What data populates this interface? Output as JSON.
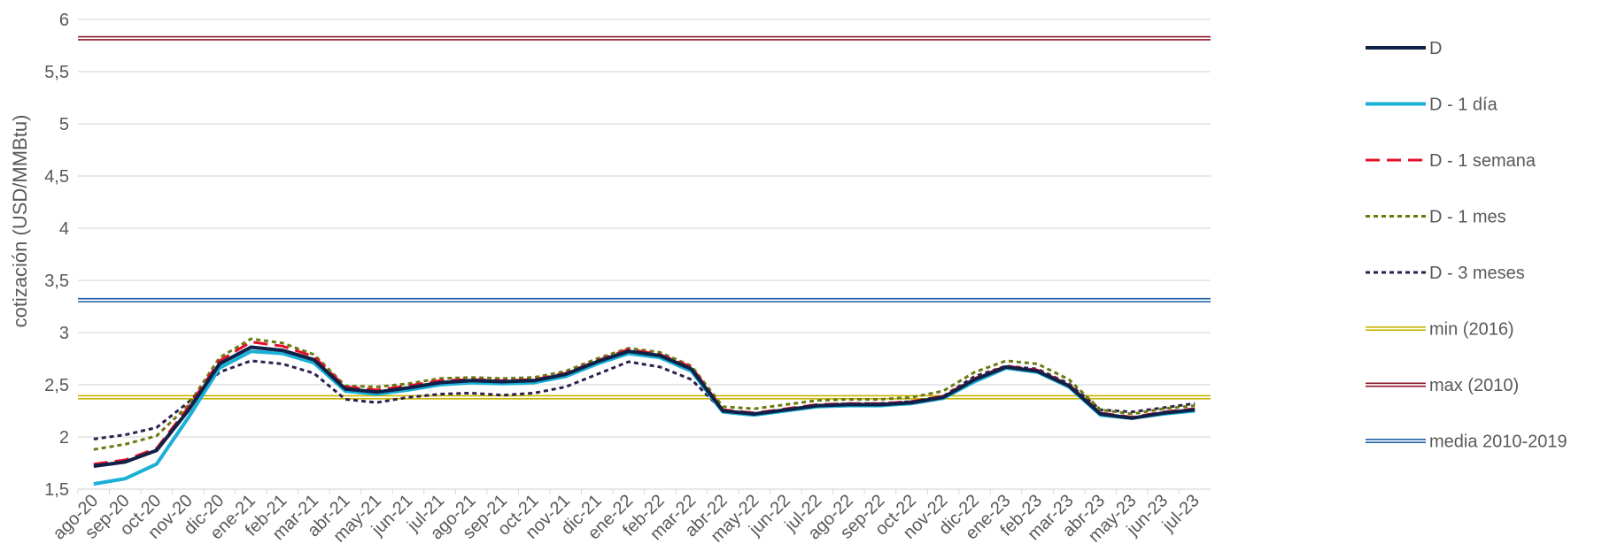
{
  "chart_data": {
    "type": "line",
    "ylabel": "cotización (USD/MMBtu)",
    "xlabel": "",
    "title": "",
    "ylim": [
      1.5,
      6
    ],
    "yticks": [
      "1,5",
      "2",
      "2,5",
      "3",
      "3,5",
      "4",
      "4,5",
      "5",
      "5,5",
      "6"
    ],
    "ytick_values": [
      1.5,
      2,
      2.5,
      3,
      3.5,
      4,
      4.5,
      5,
      5.5,
      6
    ],
    "grid": "horizontal",
    "legend_position": "right",
    "categories": [
      "ago-20",
      "sep-20",
      "oct-20",
      "nov-20",
      "dic-20",
      "ene-21",
      "feb-21",
      "mar-21",
      "abr-21",
      "may-21",
      "jun-21",
      "jul-21",
      "ago-21",
      "sep-21",
      "oct-21",
      "nov-21",
      "dic-21",
      "ene-22",
      "feb-22",
      "mar-22",
      "abr-22",
      "may-22",
      "jun-22",
      "jul-22",
      "ago-22",
      "sep-22",
      "oct-22",
      "nov-22",
      "dic-22",
      "ene-23",
      "feb-23",
      "mar-23",
      "abr-23",
      "may-23",
      "jun-23",
      "jul-23"
    ],
    "series": [
      {
        "name": "D",
        "color": "#0f2147",
        "style": "solid",
        "values": [
          1.72,
          1.76,
          1.87,
          2.25,
          2.7,
          2.86,
          2.83,
          2.74,
          2.46,
          2.43,
          2.47,
          2.52,
          2.54,
          2.53,
          2.54,
          2.6,
          2.72,
          2.82,
          2.78,
          2.65,
          2.25,
          2.22,
          2.26,
          2.3,
          2.31,
          2.31,
          2.33,
          2.38,
          2.55,
          2.67,
          2.63,
          2.49,
          2.22,
          2.18,
          2.23,
          2.26
        ]
      },
      {
        "name": "D - 1 día",
        "color": "#1ab0d8",
        "style": "solid",
        "values": [
          1.55,
          1.6,
          1.74,
          2.18,
          2.66,
          2.82,
          2.8,
          2.71,
          2.44,
          2.41,
          2.45,
          2.5,
          2.52,
          2.51,
          2.52,
          2.58,
          2.7,
          2.8,
          2.76,
          2.63,
          2.24,
          2.21,
          2.25,
          2.29,
          2.3,
          2.3,
          2.32,
          2.37,
          2.53,
          2.66,
          2.62,
          2.48,
          2.21,
          2.18,
          2.22,
          2.25
        ]
      },
      {
        "name": "D - 1 semana",
        "color": "#e30e27",
        "style": "dash",
        "values": [
          1.74,
          1.78,
          1.89,
          2.28,
          2.73,
          2.91,
          2.87,
          2.77,
          2.48,
          2.45,
          2.49,
          2.54,
          2.55,
          2.54,
          2.55,
          2.61,
          2.73,
          2.84,
          2.79,
          2.67,
          2.26,
          2.23,
          2.27,
          2.31,
          2.32,
          2.32,
          2.34,
          2.39,
          2.56,
          2.68,
          2.64,
          2.5,
          2.23,
          2.19,
          2.24,
          2.27
        ]
      },
      {
        "name": "D - 1 mes",
        "color": "#6b7b10",
        "style": "dot",
        "values": [
          1.88,
          1.93,
          2.01,
          2.3,
          2.76,
          2.94,
          2.9,
          2.79,
          2.49,
          2.48,
          2.51,
          2.56,
          2.57,
          2.56,
          2.57,
          2.63,
          2.75,
          2.85,
          2.81,
          2.68,
          2.29,
          2.27,
          2.31,
          2.35,
          2.36,
          2.36,
          2.38,
          2.44,
          2.62,
          2.73,
          2.7,
          2.55,
          2.26,
          2.22,
          2.27,
          2.3
        ]
      },
      {
        "name": "D - 3 meses",
        "color": "#2e1f4f",
        "style": "dot",
        "values": [
          1.98,
          2.02,
          2.09,
          2.33,
          2.62,
          2.73,
          2.7,
          2.61,
          2.36,
          2.33,
          2.38,
          2.41,
          2.42,
          2.4,
          2.42,
          2.48,
          2.6,
          2.72,
          2.67,
          2.55,
          2.25,
          2.22,
          2.26,
          2.3,
          2.32,
          2.32,
          2.34,
          2.39,
          2.58,
          2.68,
          2.65,
          2.51,
          2.26,
          2.24,
          2.28,
          2.32
        ]
      }
    ],
    "reference_lines": [
      {
        "name": "min (2016)",
        "color": "#c8b400",
        "value": 2.38
      },
      {
        "name": "max (2010)",
        "color": "#8b1a2b",
        "value": 5.82
      },
      {
        "name": "media 2010-2019",
        "color": "#1f5fa8",
        "value": 3.31
      }
    ]
  }
}
